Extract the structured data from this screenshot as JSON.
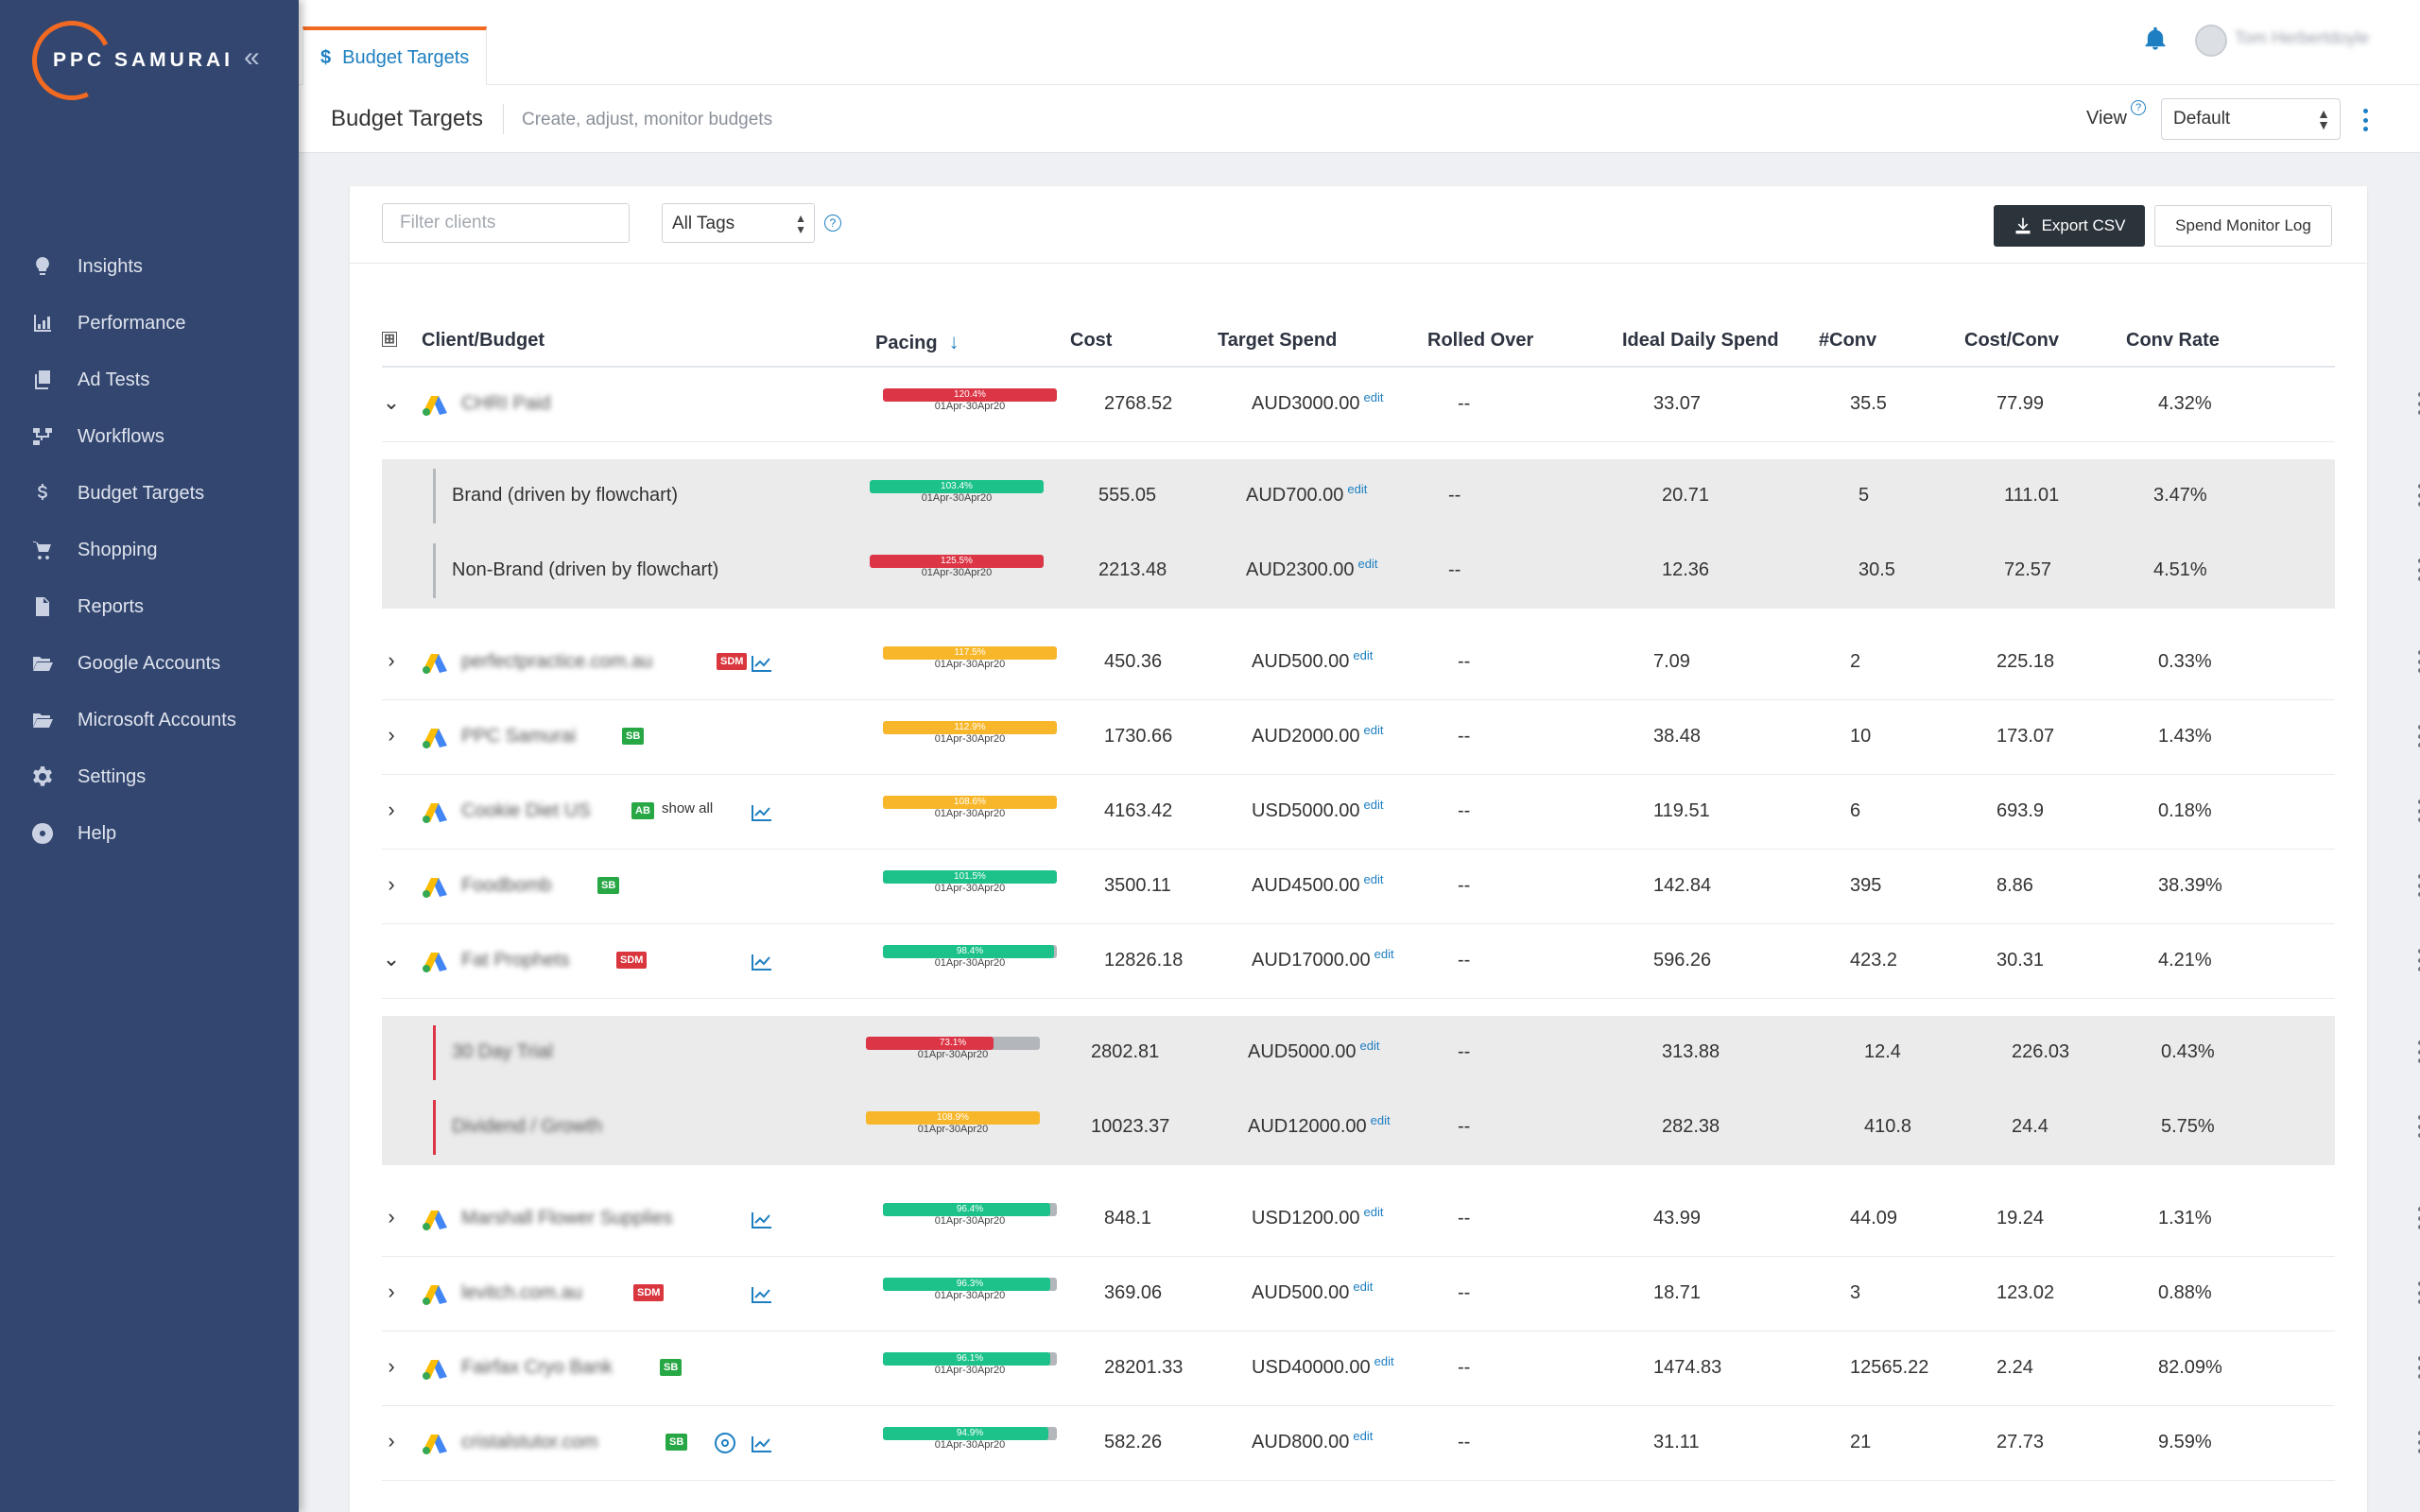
{
  "app": {
    "logo_text": "PPC SAMURAI",
    "collapse_icon": "double-chevron-left-icon"
  },
  "sidebar": {
    "items": [
      {
        "label": "Insights",
        "icon": "lightbulb-icon"
      },
      {
        "label": "Performance",
        "icon": "bar-chart-icon"
      },
      {
        "label": "Ad Tests",
        "icon": "copy-icon"
      },
      {
        "label": "Workflows",
        "icon": "sitemap-icon"
      },
      {
        "label": "Budget Targets",
        "icon": "dollar-icon"
      },
      {
        "label": "Shopping",
        "icon": "cart-icon"
      },
      {
        "label": "Reports",
        "icon": "file-icon"
      },
      {
        "label": "Google Accounts",
        "icon": "folder-open-icon"
      },
      {
        "label": "Microsoft Accounts",
        "icon": "folder-open-icon"
      },
      {
        "label": "Settings",
        "icon": "gear-icon"
      },
      {
        "label": "Help",
        "icon": "life-ring-icon"
      }
    ]
  },
  "topbar": {
    "tab_label": "Budget Targets",
    "tab_icon": "$",
    "username": "Tom Herbertdoyle"
  },
  "header": {
    "title": "Budget Targets",
    "subtitle": "Create, adjust, monitor budgets",
    "view_label": "View",
    "view_help": "?",
    "view_value": "Default"
  },
  "toolbar": {
    "filter_placeholder": "Filter clients",
    "tags_value": "All Tags",
    "help": "?",
    "export_label": "Export CSV",
    "spend_log_label": "Spend Monitor Log"
  },
  "table": {
    "columns": {
      "expand": "⊞",
      "client": "Client/Budget",
      "pacing": "Pacing",
      "sort": "↓",
      "cost": "Cost",
      "target": "Target Spend",
      "rolled": "Rolled Over",
      "ideal": "Ideal Daily Spend",
      "conv": "#Conv",
      "cpc": "Cost/Conv",
      "rate": "Conv Rate"
    },
    "edit_label": "edit",
    "show_all_label": "show all",
    "range": "01Apr-30Apr20",
    "rows": [
      {
        "chev": "⌄",
        "name": "CHRI Paid",
        "badge": "",
        "pct": "120.4%",
        "fill": 1.0,
        "color": "red",
        "cost": "2768.52",
        "target": "AUD3000.00",
        "rolled": "--",
        "ideal": "33.07",
        "conv": "35.5",
        "cpc": "77.99",
        "rate": "4.32%",
        "subs": [
          {
            "name": "Brand (driven by flowchart)",
            "blur": false,
            "pct": "103.4%",
            "fill": 1.0,
            "color": "green",
            "cost": "555.05",
            "target": "AUD700.00",
            "rolled": "--",
            "ideal": "20.71",
            "conv": "5",
            "cpc": "111.01",
            "rate": "3.47%"
          },
          {
            "name": "Non-Brand (driven by flowchart)",
            "blur": false,
            "pct": "125.5%",
            "fill": 1.0,
            "color": "red",
            "cost": "2213.48",
            "target": "AUD2300.00",
            "rolled": "--",
            "ideal": "12.36",
            "conv": "30.5",
            "cpc": "72.57",
            "rate": "4.51%"
          }
        ]
      },
      {
        "chev": "›",
        "name": "perfectpractice.com.au",
        "badge": "SDM",
        "trend": true,
        "pct": "117.5%",
        "fill": 1.0,
        "color": "orange",
        "cost": "450.36",
        "target": "AUD500.00",
        "rolled": "--",
        "ideal": "7.09",
        "conv": "2",
        "cpc": "225.18",
        "rate": "0.33%"
      },
      {
        "chev": "›",
        "name": "PPC Samurai",
        "badge": "SB",
        "pct": "112.9%",
        "fill": 1.0,
        "color": "orange",
        "cost": "1730.66",
        "target": "AUD2000.00",
        "rolled": "--",
        "ideal": "38.48",
        "conv": "10",
        "cpc": "173.07",
        "rate": "1.43%"
      },
      {
        "chev": "›",
        "name": "Cookie Diet US",
        "badge": "AB",
        "show_all": true,
        "trend": true,
        "pct": "108.6%",
        "fill": 1.0,
        "color": "orange",
        "cost": "4163.42",
        "target": "USD5000.00",
        "rolled": "--",
        "ideal": "119.51",
        "conv": "6",
        "cpc": "693.9",
        "rate": "0.18%"
      },
      {
        "chev": "›",
        "name": "Foodbomb",
        "badge": "SB",
        "pct": "101.5%",
        "fill": 1.0,
        "color": "green",
        "cost": "3500.11",
        "target": "AUD4500.00",
        "rolled": "--",
        "ideal": "142.84",
        "conv": "395",
        "cpc": "8.86",
        "rate": "38.39%"
      },
      {
        "chev": "⌄",
        "name": "Fat Prophets",
        "badge": "SDM",
        "trend": true,
        "pct": "98.4%",
        "fill": 0.984,
        "color": "green",
        "cost": "12826.18",
        "target": "AUD17000.00",
        "rolled": "--",
        "ideal": "596.26",
        "conv": "423.2",
        "cpc": "30.31",
        "rate": "4.21%",
        "subs": [
          {
            "name": "30 Day Trial",
            "blur": true,
            "red_bar": true,
            "pct": "73.1%",
            "fill": 0.731,
            "color": "red",
            "cost": "2802.81",
            "target": "AUD5000.00",
            "rolled": "--",
            "ideal": "313.88",
            "conv": "12.4",
            "cpc": "226.03",
            "rate": "0.43%"
          },
          {
            "name": "Dividend / Growth",
            "blur": true,
            "red_bar": true,
            "pct": "108.9%",
            "fill": 1.0,
            "color": "orange",
            "cost": "10023.37",
            "target": "AUD12000.00",
            "rolled": "--",
            "ideal": "282.38",
            "conv": "410.8",
            "cpc": "24.4",
            "rate": "5.75%"
          }
        ]
      },
      {
        "chev": "›",
        "name": "Marshall Flower Supplies",
        "badge": "",
        "trend": true,
        "pct": "96.4%",
        "fill": 0.964,
        "color": "green",
        "cost": "848.1",
        "target": "USD1200.00",
        "rolled": "--",
        "ideal": "43.99",
        "conv": "44.09",
        "cpc": "19.24",
        "rate": "1.31%"
      },
      {
        "chev": "›",
        "name": "levitch.com.au",
        "badge": "SDM",
        "trend": true,
        "pct": "96.3%",
        "fill": 0.963,
        "color": "green",
        "cost": "369.06",
        "target": "AUD500.00",
        "rolled": "--",
        "ideal": "18.71",
        "conv": "3",
        "cpc": "123.02",
        "rate": "0.88%"
      },
      {
        "chev": "›",
        "name": "Fairfax Cryo Bank",
        "badge": "SB",
        "pct": "96.1%",
        "fill": 0.961,
        "color": "green",
        "cost": "28201.33",
        "target": "USD40000.00",
        "rolled": "--",
        "ideal": "1474.83",
        "conv": "12565.22",
        "cpc": "2.24",
        "rate": "82.09%"
      },
      {
        "chev": "›",
        "name": "cristalstutor.com",
        "badge": "SB",
        "target_icon": true,
        "trend": true,
        "pct": "94.9%",
        "fill": 0.949,
        "color": "green",
        "cost": "582.26",
        "target": "AUD800.00",
        "rolled": "--",
        "ideal": "31.11",
        "conv": "21",
        "cpc": "27.73",
        "rate": "9.59%"
      }
    ]
  }
}
